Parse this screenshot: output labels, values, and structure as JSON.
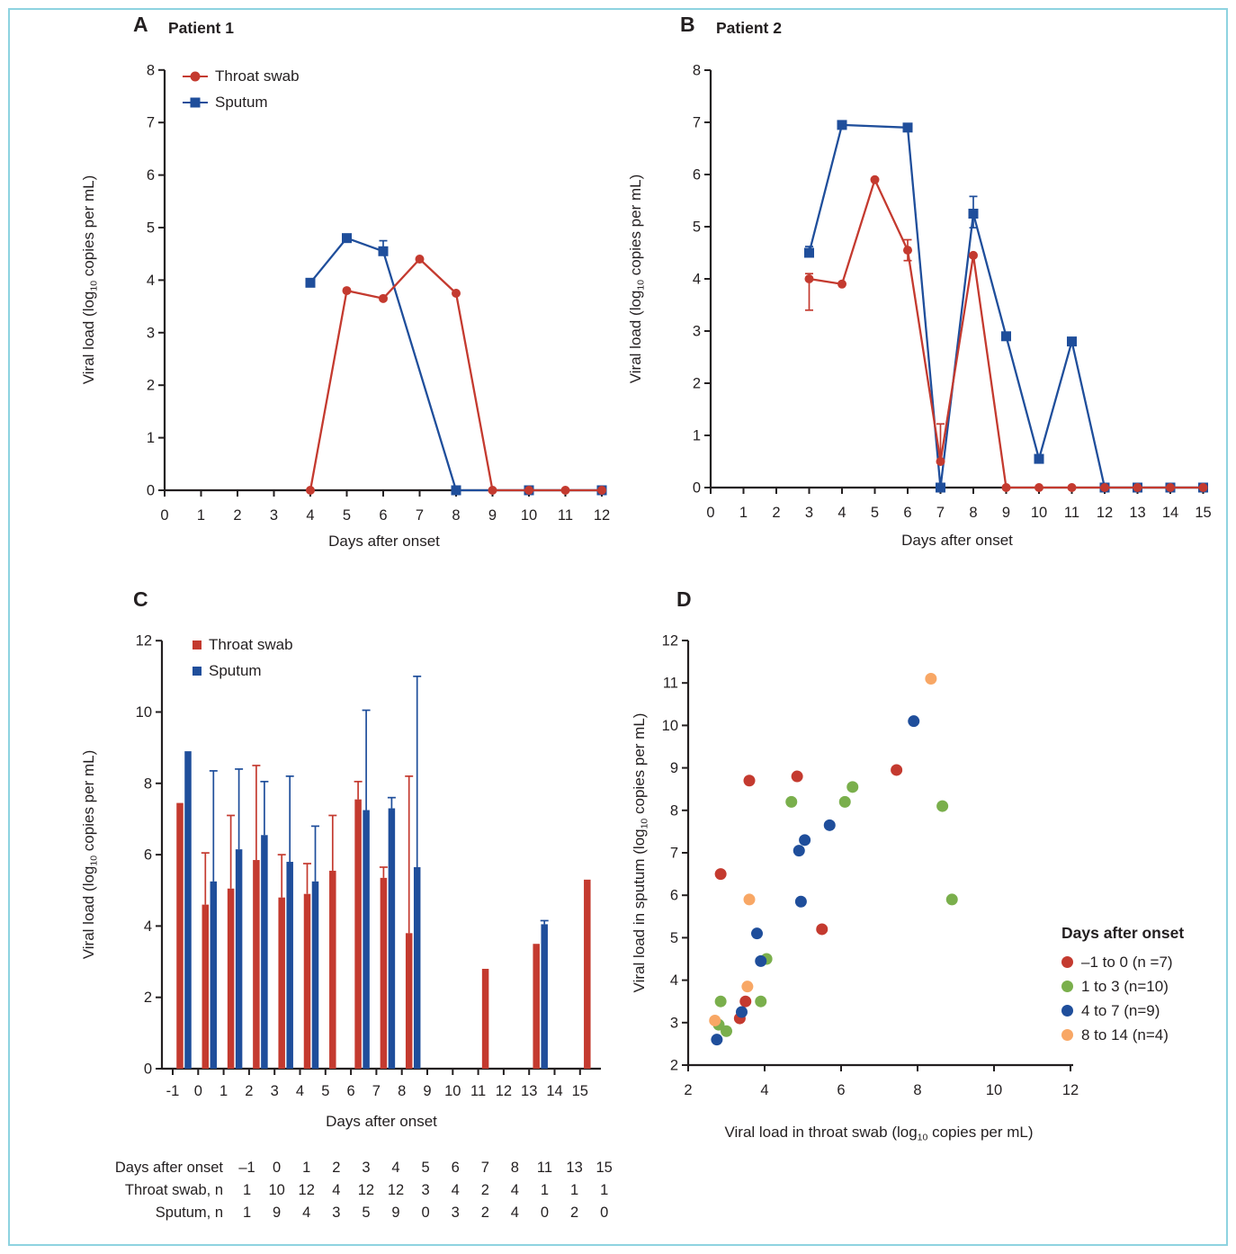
{
  "figure": {
    "colors": {
      "red": "#c43a2f",
      "blue": "#1f4e9b",
      "green": "#7aaf4c",
      "orange": "#f8a765",
      "border": "#8ed3e0",
      "axis": "#231f20"
    }
  },
  "chart_data": [
    {
      "id": "A",
      "label": "A",
      "title": "Patient 1",
      "type": "line",
      "xlabel": "Days after onset",
      "ylabel": "Viral load (log10 copies per mL)",
      "xlim": [
        0,
        12
      ],
      "xticks": [
        0,
        1,
        2,
        3,
        4,
        5,
        6,
        7,
        8,
        9,
        10,
        11,
        12
      ],
      "ylim": [
        0,
        8
      ],
      "yticks": [
        0,
        1,
        2,
        3,
        4,
        5,
        6,
        7,
        8
      ],
      "series": [
        {
          "name": "Throat swab",
          "color": "red",
          "marker": "circle",
          "points": [
            {
              "x": 4,
              "y": 0
            },
            {
              "x": 5,
              "y": 3.8
            },
            {
              "x": 6,
              "y": 3.65
            },
            {
              "x": 7,
              "y": 4.4
            },
            {
              "x": 8,
              "y": 3.75
            },
            {
              "x": 9,
              "y": 0
            },
            {
              "x": 10,
              "y": 0
            },
            {
              "x": 11,
              "y": 0
            },
            {
              "x": 12,
              "y": 0
            }
          ]
        },
        {
          "name": "Sputum",
          "color": "blue",
          "marker": "square",
          "points": [
            {
              "x": 4,
              "y": 3.95
            },
            {
              "x": 5,
              "y": 4.8
            },
            {
              "x": 6,
              "y": 4.55,
              "err_up": 0.2
            },
            {
              "x": 8,
              "y": 0
            },
            {
              "x": 10,
              "y": 0
            },
            {
              "x": 12,
              "y": 0
            }
          ]
        }
      ]
    },
    {
      "id": "B",
      "label": "B",
      "title": "Patient 2",
      "type": "line",
      "xlabel": "Days after onset",
      "ylabel": "Viral load (log10 copies per mL)",
      "xlim": [
        0,
        15
      ],
      "xticks": [
        0,
        1,
        2,
        3,
        4,
        5,
        6,
        7,
        8,
        9,
        10,
        11,
        12,
        13,
        14,
        15
      ],
      "ylim": [
        0,
        8
      ],
      "yticks": [
        0,
        1,
        2,
        3,
        4,
        5,
        6,
        7,
        8
      ],
      "series": [
        {
          "name": "Throat swab",
          "color": "red",
          "marker": "circle",
          "points": [
            {
              "x": 3,
              "y": 4.0,
              "err_down": 0.6,
              "err_up": 0.1
            },
            {
              "x": 4,
              "y": 3.9
            },
            {
              "x": 5,
              "y": 5.9
            },
            {
              "x": 6,
              "y": 4.55,
              "err_up": 0.2,
              "err_down": 0.2
            },
            {
              "x": 7,
              "y": 0.5,
              "err_up": 0.72
            },
            {
              "x": 8,
              "y": 4.45
            },
            {
              "x": 9,
              "y": 0
            },
            {
              "x": 10,
              "y": 0
            },
            {
              "x": 11,
              "y": 0
            },
            {
              "x": 12,
              "y": 0
            },
            {
              "x": 13,
              "y": 0
            },
            {
              "x": 14,
              "y": 0
            },
            {
              "x": 15,
              "y": 0
            }
          ]
        },
        {
          "name": "Sputum",
          "color": "blue",
          "marker": "square",
          "points": [
            {
              "x": 3,
              "y": 4.5,
              "err_up": 0.12
            },
            {
              "x": 4,
              "y": 6.95
            },
            {
              "x": 6,
              "y": 6.9
            },
            {
              "x": 7,
              "y": 0
            },
            {
              "x": 8,
              "y": 5.25,
              "err_up": 0.33,
              "err_down": 0.27
            },
            {
              "x": 9,
              "y": 2.9
            },
            {
              "x": 10,
              "y": 0.55
            },
            {
              "x": 11,
              "y": 2.8
            },
            {
              "x": 12,
              "y": 0
            },
            {
              "x": 13,
              "y": 0
            },
            {
              "x": 14,
              "y": 0
            },
            {
              "x": 15,
              "y": 0
            }
          ]
        }
      ]
    },
    {
      "id": "C",
      "label": "C",
      "type": "bar",
      "xlabel": "Days after onset",
      "ylabel": "Viral load (log10 copies per mL)",
      "xlim": [
        -1,
        15
      ],
      "xticks": [
        -1,
        0,
        1,
        2,
        3,
        4,
        5,
        6,
        7,
        8,
        9,
        10,
        11,
        12,
        13,
        14,
        15
      ],
      "ylim": [
        0,
        12
      ],
      "yticks": [
        0,
        2,
        4,
        6,
        8,
        10,
        12
      ],
      "categories": [
        -1,
        0,
        1,
        2,
        3,
        4,
        5,
        6,
        7,
        8,
        11,
        13,
        15
      ],
      "series": [
        {
          "name": "Throat swab",
          "color": "red",
          "values": [
            7.45,
            4.6,
            5.05,
            5.85,
            4.8,
            4.9,
            5.55,
            7.55,
            5.35,
            3.8,
            2.8,
            3.5,
            5.3
          ],
          "err_top": [
            null,
            6.05,
            7.1,
            8.5,
            6.0,
            5.75,
            7.1,
            8.05,
            5.65,
            8.2,
            null,
            null,
            null
          ]
        },
        {
          "name": "Sputum",
          "color": "blue",
          "values": [
            8.9,
            5.25,
            6.15,
            6.55,
            5.8,
            5.25,
            null,
            7.25,
            7.3,
            5.65,
            null,
            4.05,
            null
          ],
          "err_top": [
            null,
            8.35,
            8.4,
            8.05,
            8.2,
            6.8,
            null,
            10.05,
            7.6,
            11.0,
            null,
            4.15,
            null
          ]
        }
      ],
      "table": {
        "rows": [
          {
            "label": "Days after onset",
            "values": [
              "–1",
              "0",
              "1",
              "2",
              "3",
              "4",
              "5",
              "6",
              "7",
              "8",
              "11",
              "13",
              "15"
            ]
          },
          {
            "label": "Throat swab, n",
            "values": [
              "1",
              "10",
              "12",
              "4",
              "12",
              "12",
              "3",
              "4",
              "2",
              "4",
              "1",
              "1",
              "1"
            ]
          },
          {
            "label": "Sputum, n",
            "values": [
              "1",
              "9",
              "4",
              "3",
              "5",
              "9",
              "0",
              "3",
              "2",
              "4",
              "0",
              "2",
              "0"
            ]
          }
        ]
      }
    },
    {
      "id": "D",
      "label": "D",
      "type": "scatter",
      "xlabel": "Viral load in throat swab (log10 copies per mL)",
      "ylabel": "Viral load in sputum (log10 copies per mL)",
      "xlim": [
        2,
        12
      ],
      "xticks": [
        2,
        4,
        6,
        8,
        10,
        12
      ],
      "ylim": [
        2,
        12
      ],
      "yticks": [
        2,
        3,
        4,
        5,
        6,
        7,
        8,
        9,
        10,
        11,
        12
      ],
      "legend_title": "Days after onset",
      "groups": [
        {
          "name": "–1 to 0 (n =7)",
          "color": "red",
          "points": [
            [
              2.85,
              6.5
            ],
            [
              3.6,
              8.7
            ],
            [
              4.85,
              8.8
            ],
            [
              7.45,
              8.95
            ],
            [
              5.5,
              5.2
            ],
            [
              3.5,
              3.5
            ],
            [
              3.35,
              3.1
            ]
          ]
        },
        {
          "name": "1 to 3 (n=10)",
          "color": "green",
          "points": [
            [
              4.7,
              8.2
            ],
            [
              6.1,
              8.2
            ],
            [
              6.3,
              8.55
            ],
            [
              8.65,
              8.1
            ],
            [
              8.9,
              5.9
            ],
            [
              4.05,
              4.5
            ],
            [
              2.85,
              3.5
            ],
            [
              3.9,
              3.5
            ],
            [
              2.8,
              2.95
            ],
            [
              3.0,
              2.8
            ]
          ]
        },
        {
          "name": "4 to 7 (n=9)",
          "color": "blue",
          "points": [
            [
              7.9,
              10.1
            ],
            [
              5.7,
              7.65
            ],
            [
              5.05,
              7.3
            ],
            [
              4.9,
              7.05
            ],
            [
              4.95,
              5.85
            ],
            [
              3.8,
              5.1
            ],
            [
              3.9,
              4.45
            ],
            [
              3.4,
              3.25
            ],
            [
              2.75,
              2.6
            ]
          ]
        },
        {
          "name": "8 to 14 (n=4)",
          "color": "orange",
          "points": [
            [
              8.35,
              11.1
            ],
            [
              3.6,
              5.9
            ],
            [
              3.55,
              3.85
            ],
            [
              2.7,
              3.05
            ]
          ]
        }
      ]
    }
  ]
}
